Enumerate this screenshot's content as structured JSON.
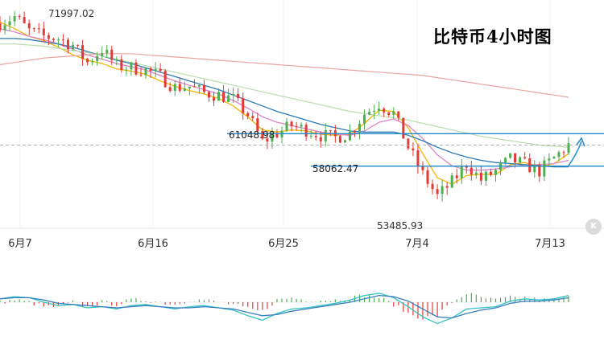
{
  "title": "比特币4小时图",
  "colors": {
    "up": "#4caf50",
    "down": "#e53935",
    "ma_fast": "#f4b400",
    "ma_mid": "#e083c8",
    "ma_slow": "#2e7bb6",
    "ma_long1": "#b9dcae",
    "ma_long2": "#eaa3a0",
    "level_line": "#1e88c8",
    "arrow": "#2a8fd0",
    "macd_dif": "#34c3c3",
    "macd_dea": "#3a7fbf"
  },
  "chart_data": {
    "type": "candlestick",
    "title": "比特币4小时图",
    "x_ticks": [
      "6月7",
      "6月16",
      "6月25",
      "7月4",
      "7月13"
    ],
    "ylim": [
      52500,
      72600
    ],
    "annotations": {
      "high_label": "71997.02",
      "low_label": "53485.93"
    },
    "levels": [
      {
        "label": "61048.98",
        "value": 61048.98
      },
      {
        "label": "58062.47",
        "value": 58062.47
      }
    ],
    "current_price_approx": 60000,
    "close_path": [
      [
        0,
        71200
      ],
      [
        3,
        71800
      ],
      [
        6,
        70500
      ],
      [
        9,
        70000
      ],
      [
        12,
        69800
      ],
      [
        15,
        69200
      ],
      [
        18,
        67600
      ],
      [
        21,
        68800
      ],
      [
        24,
        67300
      ],
      [
        27,
        67100
      ],
      [
        30,
        66900
      ],
      [
        33,
        66300
      ],
      [
        36,
        65300
      ],
      [
        39,
        65400
      ],
      [
        42,
        64800
      ],
      [
        45,
        64600
      ],
      [
        48,
        64200
      ],
      [
        51,
        62800
      ],
      [
        54,
        60300
      ],
      [
        57,
        61100
      ],
      [
        60,
        61800
      ],
      [
        63,
        61400
      ],
      [
        66,
        60900
      ],
      [
        69,
        60700
      ],
      [
        72,
        61100
      ],
      [
        75,
        62900
      ],
      [
        78,
        63800
      ],
      [
        81,
        62900
      ],
      [
        84,
        59800
      ],
      [
        87,
        57300
      ],
      [
        90,
        55300
      ],
      [
        93,
        56600
      ],
      [
        96,
        58300
      ],
      [
        99,
        56800
      ],
      [
        102,
        57600
      ],
      [
        105,
        58700
      ],
      [
        108,
        58200
      ],
      [
        111,
        57600
      ],
      [
        114,
        58800
      ],
      [
        117,
        60000
      ]
    ],
    "moving_averages": [
      {
        "color_key": "ma_fast",
        "values": [
          71300,
          70700,
          70000,
          69600,
          69000,
          68300,
          67800,
          67500,
          67000,
          66800,
          66500,
          65900,
          65400,
          65000,
          64700,
          64300,
          63600,
          62600,
          61400,
          61200,
          61400,
          61300,
          61000,
          60900,
          61000,
          62000,
          63200,
          63100,
          61600,
          59200,
          57000,
          56400,
          57200,
          57300,
          57300,
          58200,
          58400,
          58000,
          58300,
          59200
        ]
      },
      {
        "color_key": "ma_mid",
        "values": [
          70700,
          70400,
          70000,
          69700,
          69300,
          68800,
          68300,
          67900,
          67500,
          67200,
          66900,
          66400,
          65900,
          65500,
          65100,
          64700,
          64100,
          63400,
          62600,
          62100,
          61800,
          61500,
          61200,
          61000,
          60900,
          61300,
          62100,
          62400,
          61800,
          60600,
          59100,
          58100,
          57700,
          57700,
          57800,
          58000,
          58200,
          58200,
          58300,
          58600
        ]
      },
      {
        "color_key": "ma_slow",
        "values": [
          69800,
          69800,
          69700,
          69500,
          69300,
          69000,
          68600,
          68200,
          67800,
          67500,
          67100,
          66700,
          66300,
          65900,
          65500,
          65100,
          64600,
          64100,
          63600,
          63100,
          62700,
          62300,
          61900,
          61600,
          61300,
          61200,
          61200,
          61200,
          60900,
          60400,
          59800,
          59300,
          58900,
          58600,
          58400,
          58300,
          58200,
          58100,
          58000,
          58000
        ]
      },
      {
        "color_key": "ma_long1",
        "values": [
          69300,
          69300,
          69200,
          69100,
          68900,
          68700,
          68500,
          68200,
          67900,
          67600,
          67300,
          67000,
          66700,
          66400,
          66100,
          65800,
          65500,
          65200,
          64900,
          64600,
          64300,
          64000,
          63700,
          63400,
          63100,
          62900,
          62700,
          62500,
          62300,
          62000,
          61700,
          61400,
          61100,
          60800,
          60600,
          60400,
          60200,
          60000,
          59900,
          59800
        ]
      },
      {
        "color_key": "ma_long2",
        "values": [
          67400,
          67600,
          67800,
          68000,
          68100,
          68200,
          68300,
          68400,
          68400,
          68400,
          68300,
          68200,
          68100,
          68000,
          67900,
          67800,
          67700,
          67600,
          67500,
          67400,
          67300,
          67200,
          67100,
          67000,
          66900,
          66800,
          66700,
          66600,
          66500,
          66400,
          66200,
          66000,
          65800,
          65600,
          65400,
          65200,
          65000,
          64800,
          64600,
          64400
        ]
      }
    ],
    "macd_dif": [
      0.3,
      0.5,
      0.4,
      0.0,
      -0.3,
      -0.2,
      -0.5,
      -0.4,
      -0.6,
      -0.3,
      -0.2,
      -0.4,
      -0.6,
      -0.4,
      -0.3,
      -0.5,
      -0.7,
      -1.2,
      -1.6,
      -1.0,
      -0.6,
      -0.5,
      -0.3,
      -0.1,
      0.2,
      0.6,
      0.8,
      0.4,
      -0.4,
      -1.3,
      -1.9,
      -1.4,
      -0.6,
      -0.5,
      -0.4,
      0.1,
      0.3,
      0.2,
      0.3,
      0.6
    ],
    "macd_dea": [
      0.3,
      0.4,
      0.4,
      0.2,
      -0.1,
      -0.2,
      -0.3,
      -0.4,
      -0.5,
      -0.4,
      -0.3,
      -0.4,
      -0.5,
      -0.5,
      -0.4,
      -0.5,
      -0.6,
      -0.9,
      -1.2,
      -1.1,
      -0.8,
      -0.6,
      -0.4,
      -0.2,
      0.0,
      0.3,
      0.6,
      0.5,
      0.1,
      -0.6,
      -1.3,
      -1.4,
      -1.0,
      -0.7,
      -0.5,
      -0.1,
      0.1,
      0.1,
      0.2,
      0.4
    ]
  }
}
